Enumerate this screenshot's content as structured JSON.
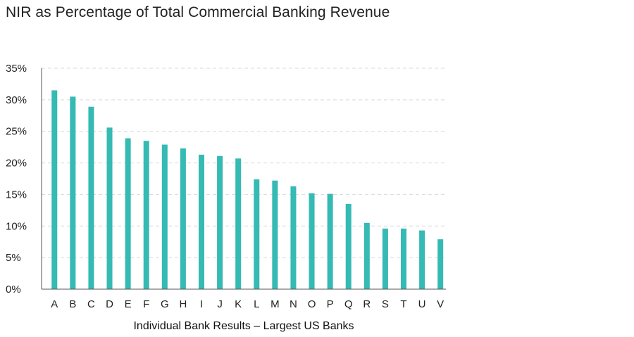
{
  "chart_data": {
    "type": "bar",
    "title": "NIR as Percentage of Total Commercial Banking Revenue",
    "xlabel": "Individual Bank Results – Largest US Banks",
    "ylabel": "",
    "categories": [
      "A",
      "B",
      "C",
      "D",
      "E",
      "F",
      "G",
      "H",
      "I",
      "J",
      "K",
      "L",
      "M",
      "N",
      "O",
      "P",
      "Q",
      "R",
      "S",
      "T",
      "U",
      "V"
    ],
    "values": [
      31.5,
      30.5,
      28.9,
      25.6,
      23.9,
      23.5,
      22.9,
      22.3,
      21.3,
      21.1,
      20.7,
      17.4,
      17.2,
      16.3,
      15.2,
      15.1,
      13.5,
      10.5,
      9.6,
      9.6,
      9.3,
      7.9
    ],
    "ylim": [
      0,
      35
    ],
    "yticks": [
      0,
      5,
      10,
      15,
      20,
      25,
      30,
      35
    ],
    "ytick_labels": [
      "0%",
      "5%",
      "10%",
      "15%",
      "20%",
      "25%",
      "30%",
      "35%"
    ],
    "grid": true,
    "legend": "none",
    "bar_color": "#35bab4",
    "grid_color": "#d9d9d9",
    "axis_color": "#555555"
  }
}
